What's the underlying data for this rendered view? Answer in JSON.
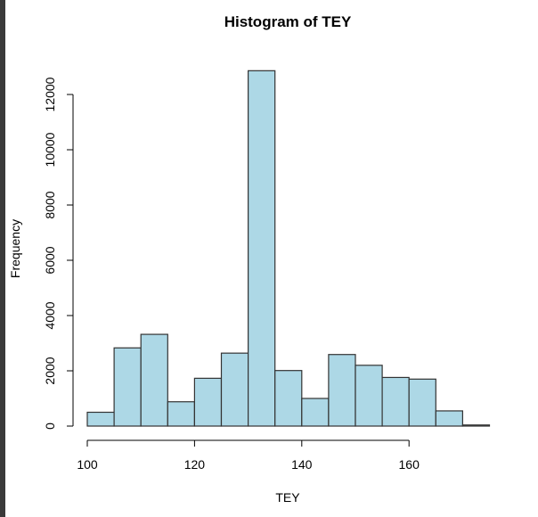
{
  "chart_data": {
    "type": "bar",
    "title": "Histogram of TEY",
    "xlabel": "TEY",
    "ylabel": "Frequency",
    "bin_width": 5,
    "bins": [
      {
        "start": 100,
        "end": 105,
        "count": 500
      },
      {
        "start": 105,
        "end": 110,
        "count": 2830
      },
      {
        "start": 110,
        "end": 115,
        "count": 3320
      },
      {
        "start": 115,
        "end": 120,
        "count": 880
      },
      {
        "start": 120,
        "end": 125,
        "count": 1730
      },
      {
        "start": 125,
        "end": 130,
        "count": 2640
      },
      {
        "start": 130,
        "end": 135,
        "count": 12860
      },
      {
        "start": 135,
        "end": 140,
        "count": 2010
      },
      {
        "start": 140,
        "end": 145,
        "count": 1000
      },
      {
        "start": 145,
        "end": 150,
        "count": 2590
      },
      {
        "start": 150,
        "end": 155,
        "count": 2200
      },
      {
        "start": 155,
        "end": 160,
        "count": 1760
      },
      {
        "start": 160,
        "end": 165,
        "count": 1700
      },
      {
        "start": 165,
        "end": 170,
        "count": 550
      },
      {
        "start": 170,
        "end": 175,
        "count": 40
      }
    ],
    "xticks": [
      100,
      120,
      140,
      160
    ],
    "yticks": [
      0,
      2000,
      4000,
      6000,
      8000,
      10000,
      12000
    ],
    "xlim": [
      100,
      175
    ],
    "ylim": [
      0,
      12860
    ],
    "grid": false,
    "bar_color": "#add8e6",
    "bar_stroke": "#333333"
  }
}
